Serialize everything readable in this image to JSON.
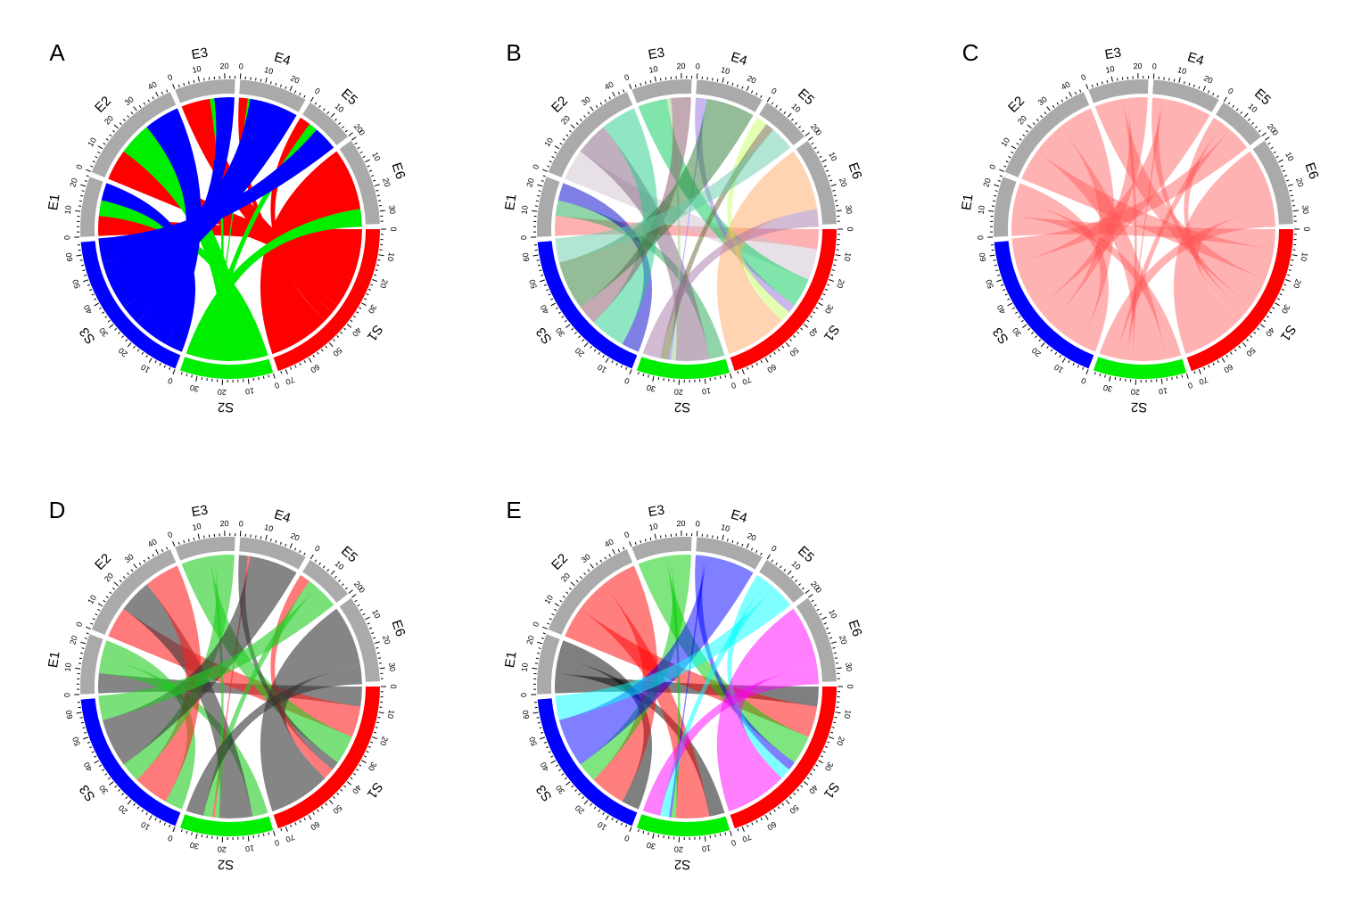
{
  "chart_data": {
    "type": "chord",
    "title": "",
    "sectors": [
      {
        "name": "S1",
        "size": 73,
        "group": "source"
      },
      {
        "name": "S2",
        "size": 37,
        "group": "source"
      },
      {
        "name": "S3",
        "size": 65,
        "group": "source"
      },
      {
        "name": "E1",
        "size": 24,
        "group": "target"
      },
      {
        "name": "E2",
        "size": 45,
        "group": "target"
      },
      {
        "name": "E3",
        "size": 24,
        "group": "target"
      },
      {
        "name": "E4",
        "size": 27,
        "group": "target"
      },
      {
        "name": "E5",
        "size": 20,
        "group": "target"
      },
      {
        "name": "E6",
        "size": 35,
        "group": "target"
      }
    ],
    "sector_colors": {
      "S1": "#ff0000",
      "S2": "#00ee00",
      "S3": "#0000ff",
      "E": "#aaaaaa"
    },
    "links": [
      {
        "from": "S1",
        "to": "E1",
        "value": 9
      },
      {
        "from": "S1",
        "to": "E2",
        "value": 14
      },
      {
        "from": "S1",
        "to": "E3",
        "value": 13
      },
      {
        "from": "S1",
        "to": "E4",
        "value": 4
      },
      {
        "from": "S1",
        "to": "E5",
        "value": 5
      },
      {
        "from": "S1",
        "to": "E6",
        "value": 28
      },
      {
        "from": "S2",
        "to": "E1",
        "value": 7
      },
      {
        "from": "S2",
        "to": "E2",
        "value": 15
      },
      {
        "from": "S2",
        "to": "E3",
        "value": 2
      },
      {
        "from": "S2",
        "to": "E4",
        "value": 1
      },
      {
        "from": "S2",
        "to": "E5",
        "value": 4
      },
      {
        "from": "S2",
        "to": "E6",
        "value": 8
      },
      {
        "from": "S3",
        "to": "E1",
        "value": 8
      },
      {
        "from": "S3",
        "to": "E2",
        "value": 16
      },
      {
        "from": "S3",
        "to": "E3",
        "value": 9
      },
      {
        "from": "S3",
        "to": "E4",
        "value": 22
      },
      {
        "from": "S3",
        "to": "E5",
        "value": 11
      },
      {
        "from": "S3",
        "to": "E6",
        "value": -1
      }
    ],
    "panels": [
      {
        "label": "A",
        "color_mode": "by-source",
        "opacity": 1.0
      },
      {
        "label": "B",
        "color_mode": "per-link",
        "opacity": 0.5,
        "colors": [
          "#ff6464",
          "#cfc3d0",
          "#00cc55",
          "#9370db",
          "#ccff66",
          "#ffaa66",
          "#22aa55",
          "#806080",
          "#9ad08a",
          "#7f7fff",
          "#666633",
          "#aa77aa",
          "#0000cc",
          "#22cc88",
          "#885566",
          "#2a7a33",
          "#66ccaa",
          "#bb8844"
        ]
      },
      {
        "label": "C",
        "color_mode": "single",
        "opacity": 0.45,
        "color": "#ff5555"
      },
      {
        "label": "D",
        "color_mode": "per-link",
        "opacity": 0.6,
        "colors": [
          "#333333",
          "#ff2222",
          "#22cc22",
          "#333333",
          "#ff2222",
          "#333333",
          "#22cc22",
          "#333333",
          "#22cc22",
          "#ff2222",
          "#22cc22",
          "#333333",
          "#22cc22",
          "#ff2222",
          "#22cc22",
          "#333333",
          "#22cc22",
          "#ff2222"
        ]
      },
      {
        "label": "E",
        "color_mode": "by-target",
        "opacity": 0.5,
        "target_colors": {
          "E1": "#000000",
          "E2": "#ff0000",
          "E3": "#00cc00",
          "E4": "#0000ff",
          "E5": "#00ffff",
          "E6": "#ff00ff"
        }
      }
    ],
    "tick_step": 10,
    "minor_tick_step": 2,
    "legend": "none"
  }
}
